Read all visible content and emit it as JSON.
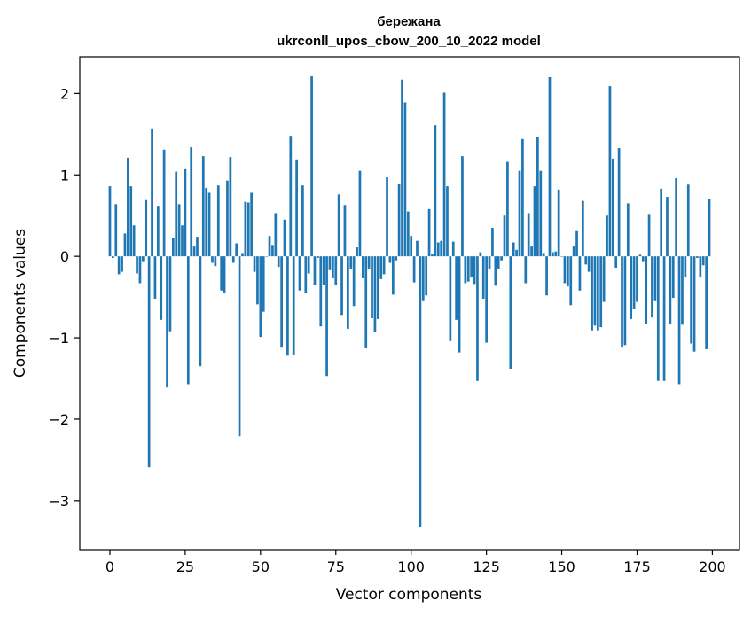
{
  "chart_data": {
    "type": "bar",
    "title": "бережана",
    "subtitle": "ukrconll_upos_cbow_200_10_2022 model",
    "xlabel": "Vector components",
    "ylabel": "Components values",
    "xlim": [
      -10,
      209
    ],
    "ylim": [
      -3.6,
      2.45
    ],
    "xticks": [
      0,
      25,
      50,
      75,
      100,
      125,
      150,
      175,
      200
    ],
    "yticks": [
      -3,
      -2,
      -1,
      0,
      1,
      2
    ],
    "ytick_labels": [
      "−3",
      "−2",
      "−1",
      "0",
      "1",
      "2"
    ],
    "grid": false,
    "color": "#1f77b4",
    "series": [
      {
        "x_start": 0,
        "values": [
          0.86,
          -0.02,
          0.64,
          -0.22,
          -0.19,
          0.28,
          1.21,
          0.86,
          0.38,
          -0.21,
          -0.33,
          -0.06,
          0.69,
          -2.59,
          1.57,
          -0.52,
          0.62,
          -0.78,
          1.31,
          -1.61,
          -0.92,
          0.22,
          1.04,
          0.64,
          0.38,
          1.07,
          -1.57,
          1.34,
          0.12,
          0.24,
          -1.35,
          1.23,
          0.84,
          0.78,
          -0.08,
          -0.12,
          0.87,
          -0.42,
          -0.45,
          0.93,
          1.22,
          -0.08,
          0.16,
          -2.21,
          0.04,
          0.67,
          0.66,
          0.78,
          -0.19,
          -0.59,
          -0.99,
          -0.68,
          0.0,
          0.25,
          0.14,
          0.53,
          -0.13,
          -1.11,
          0.45,
          -1.22,
          1.48,
          -1.21,
          1.19,
          -0.42,
          0.87,
          -0.45,
          -0.21,
          2.21,
          -0.35,
          -0.02,
          -0.86,
          -0.35,
          -1.47,
          -0.17,
          -0.27,
          -0.35,
          0.76,
          -0.72,
          0.63,
          -0.89,
          -0.15,
          -0.61,
          0.11,
          1.05,
          -0.27,
          -1.13,
          -0.15,
          -0.76,
          -0.93,
          -0.77,
          -0.28,
          -0.22,
          0.97,
          -0.08,
          -0.47,
          -0.05,
          0.89,
          2.17,
          1.89,
          0.55,
          0.25,
          -0.32,
          0.19,
          -3.32,
          -0.54,
          -0.48,
          0.58,
          0.03,
          1.61,
          0.17,
          0.19,
          2.01,
          0.86,
          -1.04,
          0.18,
          -0.78,
          -1.18,
          1.23,
          -0.33,
          -0.31,
          -0.26,
          -0.34,
          -1.53,
          0.05,
          -0.52,
          -1.06,
          -0.15,
          0.35,
          -0.36,
          -0.15,
          -0.05,
          0.5,
          1.16,
          -1.38,
          0.17,
          0.08,
          1.05,
          1.44,
          -0.33,
          0.53,
          0.12,
          0.86,
          1.46,
          1.05,
          0.04,
          -0.48,
          2.2,
          0.05,
          0.06,
          0.82,
          0.0,
          -0.33,
          -0.37,
          -0.6,
          0.12,
          0.31,
          -0.42,
          0.68,
          -0.1,
          -0.19,
          -0.91,
          -0.85,
          -0.91,
          -0.87,
          -0.56,
          0.5,
          2.09,
          1.2,
          -0.14,
          1.33,
          -1.11,
          -1.09,
          0.65,
          -0.77,
          -0.65,
          -0.56,
          0.02,
          -0.06,
          -0.83,
          0.52,
          -0.75,
          -0.54,
          -1.53,
          0.83,
          -1.53,
          0.73,
          -0.83,
          -0.51,
          0.96,
          -1.57,
          -0.84,
          -0.26,
          0.88,
          -1.07,
          -1.17,
          -0.02,
          -0.25,
          -0.11,
          -1.14,
          0.7
        ]
      }
    ]
  }
}
